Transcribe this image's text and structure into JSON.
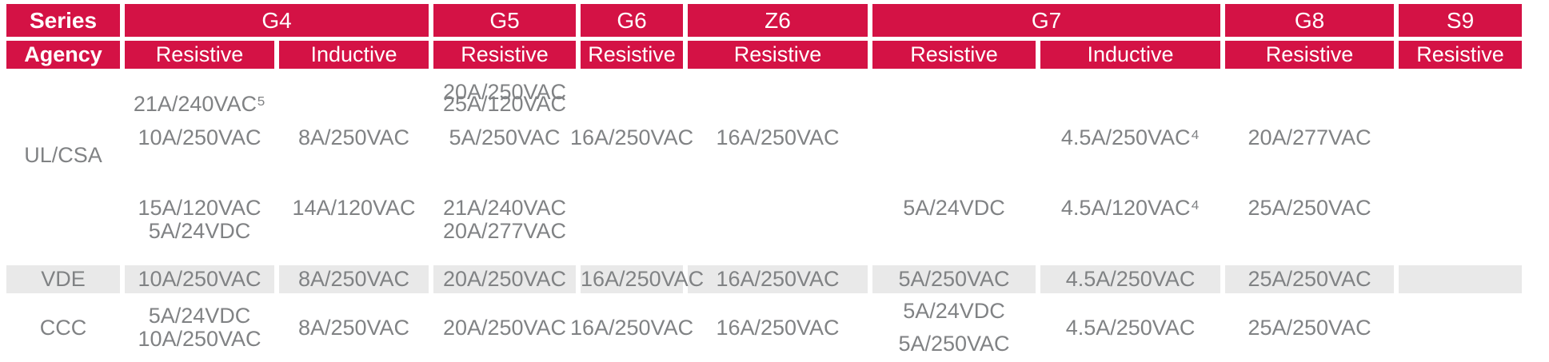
{
  "colors": {
    "header_bg": "#d41245",
    "header_text": "#ffffff",
    "body_text": "#808284",
    "alt_row_bg": "#e9e9e9"
  },
  "header": {
    "series_label": "Series",
    "agency_label": "Agency",
    "groups": [
      {
        "name": "G4",
        "cols": [
          "Resistive",
          "Inductive"
        ]
      },
      {
        "name": "G5",
        "cols": [
          "Resistive"
        ]
      },
      {
        "name": "G6",
        "cols": [
          "Resistive"
        ]
      },
      {
        "name": "Z6",
        "cols": [
          "Resistive"
        ]
      },
      {
        "name": "G7",
        "cols": [
          "Resistive",
          "Inductive"
        ]
      },
      {
        "name": "G8",
        "cols": [
          "Resistive"
        ]
      },
      {
        "name": "S9",
        "cols": [
          "Resistive"
        ]
      }
    ]
  },
  "ratings": {
    "ulcsa": {
      "agency": "UL/CSA",
      "g4_resistive": {
        "upper": [
          "21A/240VAC⁵",
          "10A/250VAC"
        ],
        "lower": [
          "15A/120VAC",
          "5A/24VDC"
        ]
      },
      "g4_inductive": {
        "upper": [
          "8A/250VAC"
        ],
        "lower": [
          "14A/120VAC"
        ]
      },
      "g5_resistive": {
        "upper": [
          "20A/250VAC",
          "25A/120VAC",
          "5A/250VAC"
        ],
        "lower": [
          "21A/240VAC",
          "20A/277VAC"
        ]
      },
      "g6_resistive": {
        "upper": [
          "16A/250VAC"
        ],
        "lower": []
      },
      "z6_resistive": {
        "upper": [
          "16A/250VAC"
        ],
        "lower": []
      },
      "g7_resistive": {
        "upper": [],
        "lower": [
          "5A/24VDC"
        ]
      },
      "g7_inductive": {
        "upper": [
          "4.5A/250VAC⁴"
        ],
        "lower": [
          "4.5A/120VAC⁴"
        ]
      },
      "g8_resistive": {
        "upper": [
          "20A/277VAC"
        ],
        "lower": [
          "25A/250VAC"
        ]
      },
      "s9_resistive": {
        "upper": [],
        "lower": []
      }
    },
    "vde": {
      "agency": "VDE",
      "g4_resistive": "10A/250VAC",
      "g4_inductive": "8A/250VAC",
      "g5_resistive": "20A/250VAC",
      "g6_resistive": "16A/250VAC",
      "z6_resistive": "16A/250VAC",
      "g7_resistive": "5A/250VAC",
      "g7_inductive": "4.5A/250VAC",
      "g8_resistive": "25A/250VAC",
      "s9_resistive": ""
    },
    "ccc": {
      "agency": "CCC",
      "g4_resistive": [
        "5A/24VDC",
        "10A/250VAC"
      ],
      "g4_inductive": [
        "8A/250VAC"
      ],
      "g5_resistive": [
        "20A/250VAC"
      ],
      "g6_resistive": [
        "16A/250VAC"
      ],
      "z6_resistive": [
        "16A/250VAC"
      ],
      "g7_resistive": [
        "5A/24VDC",
        "5A/250VAC"
      ],
      "g7_inductive": [
        "4.5A/250VAC"
      ],
      "g8_resistive": [
        "25A/250VAC"
      ],
      "s9_resistive": []
    }
  }
}
